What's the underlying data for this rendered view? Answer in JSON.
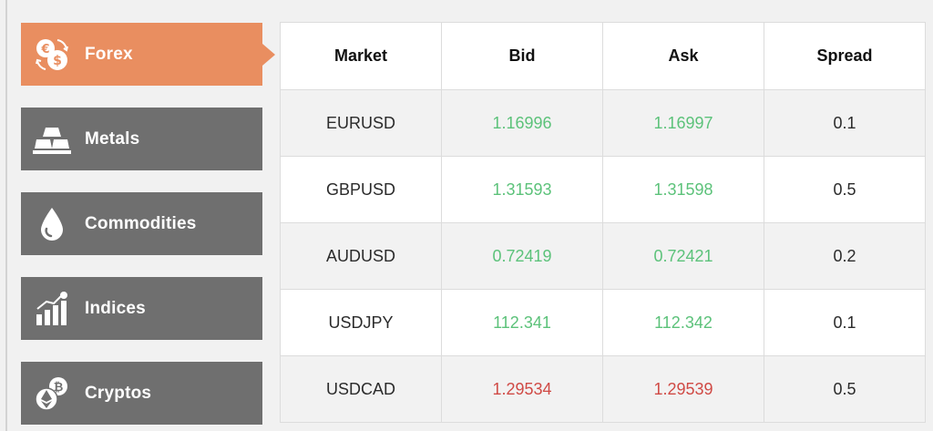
{
  "sidebar": {
    "items": [
      {
        "label": "Forex",
        "icon": "currency-exchange-icon",
        "active": true
      },
      {
        "label": "Metals",
        "icon": "gold-bars-icon",
        "active": false
      },
      {
        "label": "Commodities",
        "icon": "oil-drop-icon",
        "active": false
      },
      {
        "label": "Indices",
        "icon": "bar-chart-icon",
        "active": false
      },
      {
        "label": "Cryptos",
        "icon": "crypto-coins-icon",
        "active": false
      }
    ]
  },
  "table": {
    "headers": {
      "market": "Market",
      "bid": "Bid",
      "ask": "Ask",
      "spread": "Spread"
    },
    "rows": [
      {
        "market": "EURUSD",
        "bid": "1.16996",
        "ask": "1.16997",
        "spread": "0.1",
        "direction": "up"
      },
      {
        "market": "GBPUSD",
        "bid": "1.31593",
        "ask": "1.31598",
        "spread": "0.5",
        "direction": "up"
      },
      {
        "market": "AUDUSD",
        "bid": "0.72419",
        "ask": "0.72421",
        "spread": "0.2",
        "direction": "up"
      },
      {
        "market": "USDJPY",
        "bid": "112.341",
        "ask": "112.342",
        "spread": "0.1",
        "direction": "up"
      },
      {
        "market": "USDCAD",
        "bid": "1.29534",
        "ask": "1.29539",
        "spread": "0.5",
        "direction": "down"
      }
    ]
  },
  "colors": {
    "active_tab": "#e98e60",
    "inactive_tab": "#6f6f6f",
    "price_up": "#5cc27a",
    "price_down": "#d04a45"
  }
}
